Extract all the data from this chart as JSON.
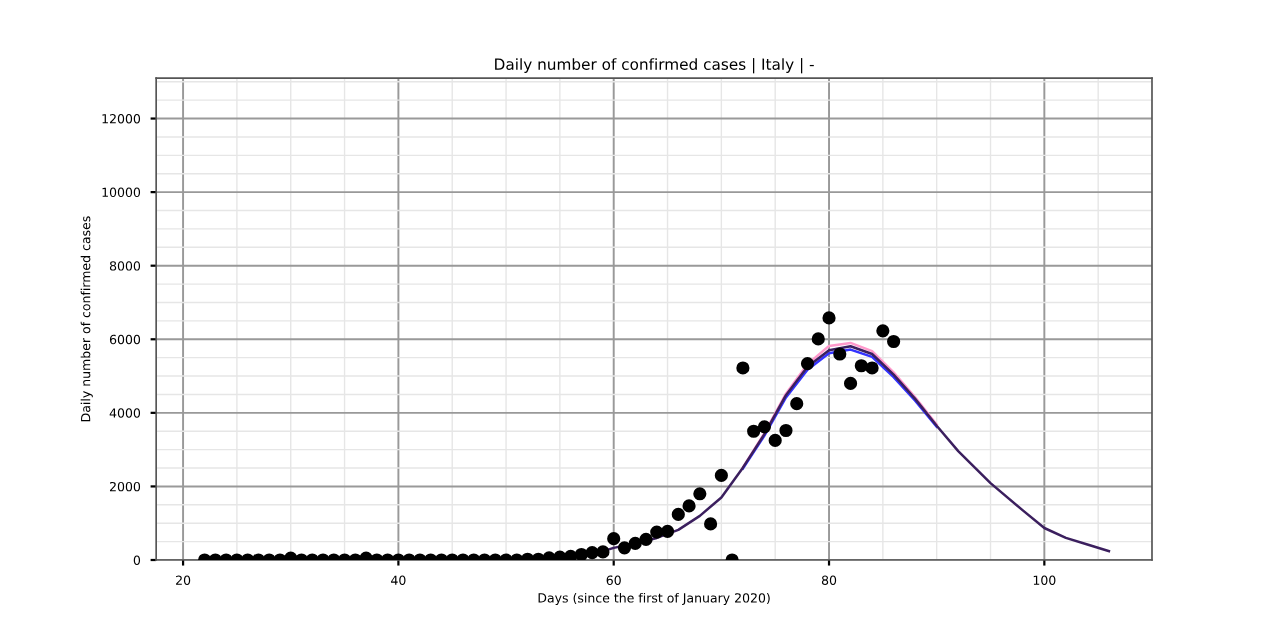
{
  "chart_data": {
    "type": "scatter",
    "title": "Daily number of confirmed cases | Italy | -",
    "xlabel": "Days (since the first of January 2020)",
    "ylabel": "Daily number of confirmed cases",
    "xlim": [
      17.5,
      110
    ],
    "ylim": [
      0,
      13100
    ],
    "xticks": [
      20,
      40,
      60,
      80,
      100
    ],
    "yticks": [
      0,
      2000,
      4000,
      6000,
      8000,
      10000,
      12000
    ],
    "grid": true,
    "series": [
      {
        "color": "#000000",
        "marker": "circle",
        "x": [
          22,
          23,
          24,
          25,
          26,
          27,
          28,
          29,
          30,
          31,
          32,
          33,
          34,
          35,
          36,
          37,
          38,
          39,
          40,
          41,
          42,
          43,
          44,
          45,
          46,
          47,
          48,
          49,
          50,
          51,
          52,
          53,
          54,
          55,
          56,
          57,
          58,
          59,
          60,
          61,
          62,
          63,
          64,
          65,
          66,
          67,
          68,
          69,
          70,
          71,
          72,
          73,
          74,
          75,
          76,
          77,
          78,
          79,
          80,
          81,
          82,
          83,
          84,
          85,
          86
        ],
        "values": [
          0,
          0,
          0,
          0,
          0,
          0,
          0,
          0,
          50,
          0,
          0,
          0,
          0,
          0,
          0,
          50,
          0,
          0,
          0,
          0,
          0,
          0,
          0,
          0,
          0,
          0,
          0,
          0,
          0,
          0,
          20,
          20,
          60,
          80,
          100,
          150,
          200,
          220,
          580,
          330,
          450,
          560,
          760,
          780,
          1240,
          1470,
          1800,
          980,
          2300,
          0,
          5220,
          3500,
          3620,
          3250,
          3520,
          4250,
          5340,
          6010,
          6580,
          5600,
          4800,
          5280,
          5220,
          6230,
          5940
        ]
      },
      {
        "type": "line",
        "color": "#ff99cc",
        "marker": "none",
        "x": [
          72,
          74,
          76,
          78,
          80,
          82,
          84,
          86,
          88,
          90
        ],
        "values": [
          2520,
          3450,
          4520,
          5320,
          5820,
          5900,
          5680,
          5100,
          4420,
          3680
        ]
      },
      {
        "type": "line",
        "color": "#3333ff",
        "marker": "none",
        "x": [
          72,
          74,
          76,
          78,
          80,
          82,
          84,
          86,
          88,
          90
        ],
        "values": [
          2490,
          3380,
          4420,
          5170,
          5620,
          5720,
          5520,
          4970,
          4330,
          3620
        ]
      },
      {
        "type": "line",
        "color": "#3b1f5e",
        "marker": "none",
        "x": [
          22,
          40,
          50,
          55,
          58,
          60,
          62,
          64,
          66,
          68,
          70,
          72,
          74,
          76,
          78,
          80,
          82,
          84,
          86,
          88,
          90,
          92,
          95,
          98,
          100,
          102,
          104,
          106
        ],
        "values": [
          0,
          0,
          20,
          60,
          150,
          330,
          450,
          600,
          820,
          1200,
          1700,
          2510,
          3420,
          4480,
          5250,
          5700,
          5810,
          5600,
          5040,
          4380,
          3650,
          2960,
          2090,
          1350,
          870,
          600,
          420,
          240
        ]
      }
    ]
  }
}
